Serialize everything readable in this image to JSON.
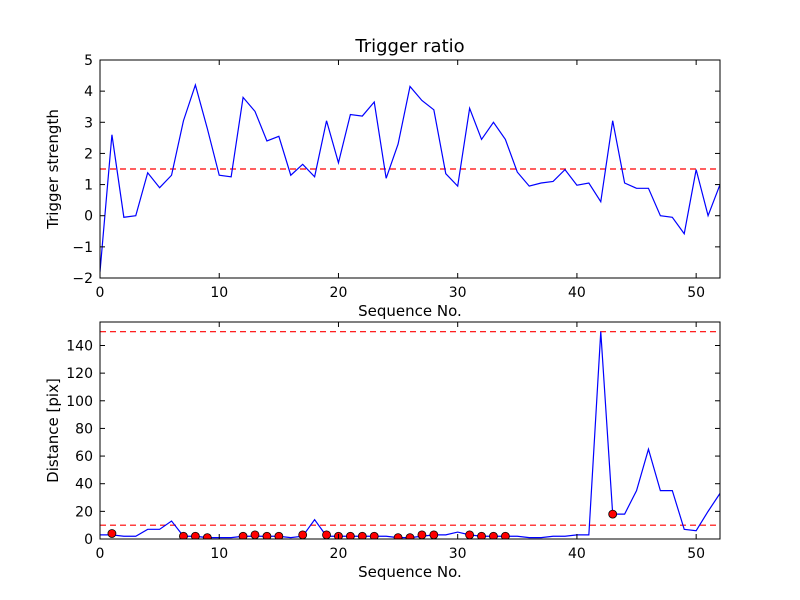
{
  "chart_data": [
    {
      "type": "line",
      "title": "Trigger ratio",
      "xlabel": "Sequence No.",
      "ylabel": "Trigger strength",
      "xlim": [
        0,
        52
      ],
      "ylim": [
        -2,
        5
      ],
      "xticks": [
        0,
        10,
        20,
        30,
        40,
        50
      ],
      "yticks": [
        -2,
        -1,
        0,
        1,
        2,
        3,
        4,
        5
      ],
      "grid": false,
      "threshold_lines": [
        1.5
      ],
      "series": [
        {
          "color": "#0000ff",
          "x": [
            0,
            1,
            2,
            3,
            4,
            5,
            6,
            7,
            8,
            9,
            10,
            11,
            12,
            13,
            14,
            15,
            16,
            17,
            18,
            19,
            20,
            21,
            22,
            23,
            24,
            25,
            26,
            27,
            28,
            29,
            30,
            31,
            32,
            33,
            34,
            35,
            36,
            37,
            38,
            39,
            40,
            41,
            42,
            43,
            44,
            45,
            46,
            47,
            48,
            49,
            50,
            51,
            52
          ],
          "y": [
            -1.8,
            2.6,
            -0.05,
            0.0,
            1.38,
            0.9,
            1.3,
            3.05,
            4.2,
            2.8,
            1.3,
            1.25,
            3.8,
            3.35,
            2.4,
            2.55,
            1.3,
            1.65,
            1.25,
            3.05,
            1.7,
            3.25,
            3.2,
            3.65,
            1.2,
            2.3,
            4.15,
            3.7,
            3.4,
            1.35,
            0.95,
            3.45,
            2.45,
            3.0,
            2.45,
            1.4,
            0.95,
            1.05,
            1.1,
            1.48,
            0.98,
            1.05,
            0.45,
            3.05,
            1.05,
            0.88,
            0.88,
            0.0,
            -0.05,
            -0.58,
            1.48,
            0.0,
            1.0
          ]
        }
      ]
    },
    {
      "type": "line",
      "title": "",
      "xlabel": "Sequence No.",
      "ylabel": "Distance [pix]",
      "xlim": [
        0,
        52
      ],
      "ylim": [
        0,
        157
      ],
      "xticks": [
        0,
        10,
        20,
        30,
        40,
        50
      ],
      "yticks": [
        0,
        20,
        40,
        60,
        80,
        100,
        120,
        140
      ],
      "grid": false,
      "threshold_lines": [
        10,
        150
      ],
      "series": [
        {
          "color": "#0000ff",
          "x": [
            0,
            1,
            2,
            3,
            4,
            5,
            6,
            7,
            8,
            9,
            10,
            11,
            12,
            13,
            14,
            15,
            16,
            17,
            18,
            19,
            20,
            21,
            22,
            23,
            24,
            25,
            26,
            27,
            28,
            29,
            30,
            31,
            32,
            33,
            34,
            35,
            36,
            37,
            38,
            39,
            40,
            41,
            42,
            43,
            44,
            45,
            46,
            47,
            48,
            49,
            50,
            51,
            52
          ],
          "y": [
            3,
            3,
            2,
            2,
            7,
            7,
            13,
            2,
            2,
            1,
            1,
            1,
            2,
            2,
            2,
            2,
            1,
            2,
            14,
            2,
            2,
            2,
            2,
            2,
            2,
            1,
            1,
            2,
            3,
            3,
            5,
            3,
            2,
            2,
            2,
            2,
            1,
            1,
            2,
            2,
            3,
            3,
            150,
            18,
            18,
            35,
            65,
            35,
            35,
            7,
            6,
            20,
            33
          ]
        }
      ],
      "markers": {
        "color": "#ff0000",
        "x": [
          1,
          7,
          8,
          9,
          12,
          13,
          14,
          15,
          17,
          19,
          20,
          21,
          22,
          23,
          25,
          26,
          27,
          28,
          31,
          32,
          33,
          34,
          43
        ],
        "y": [
          4,
          2,
          2,
          1,
          2,
          3,
          2,
          2,
          3,
          3,
          2,
          2,
          2,
          2,
          1,
          1,
          3,
          3,
          3,
          2,
          2,
          2,
          18
        ]
      }
    }
  ]
}
